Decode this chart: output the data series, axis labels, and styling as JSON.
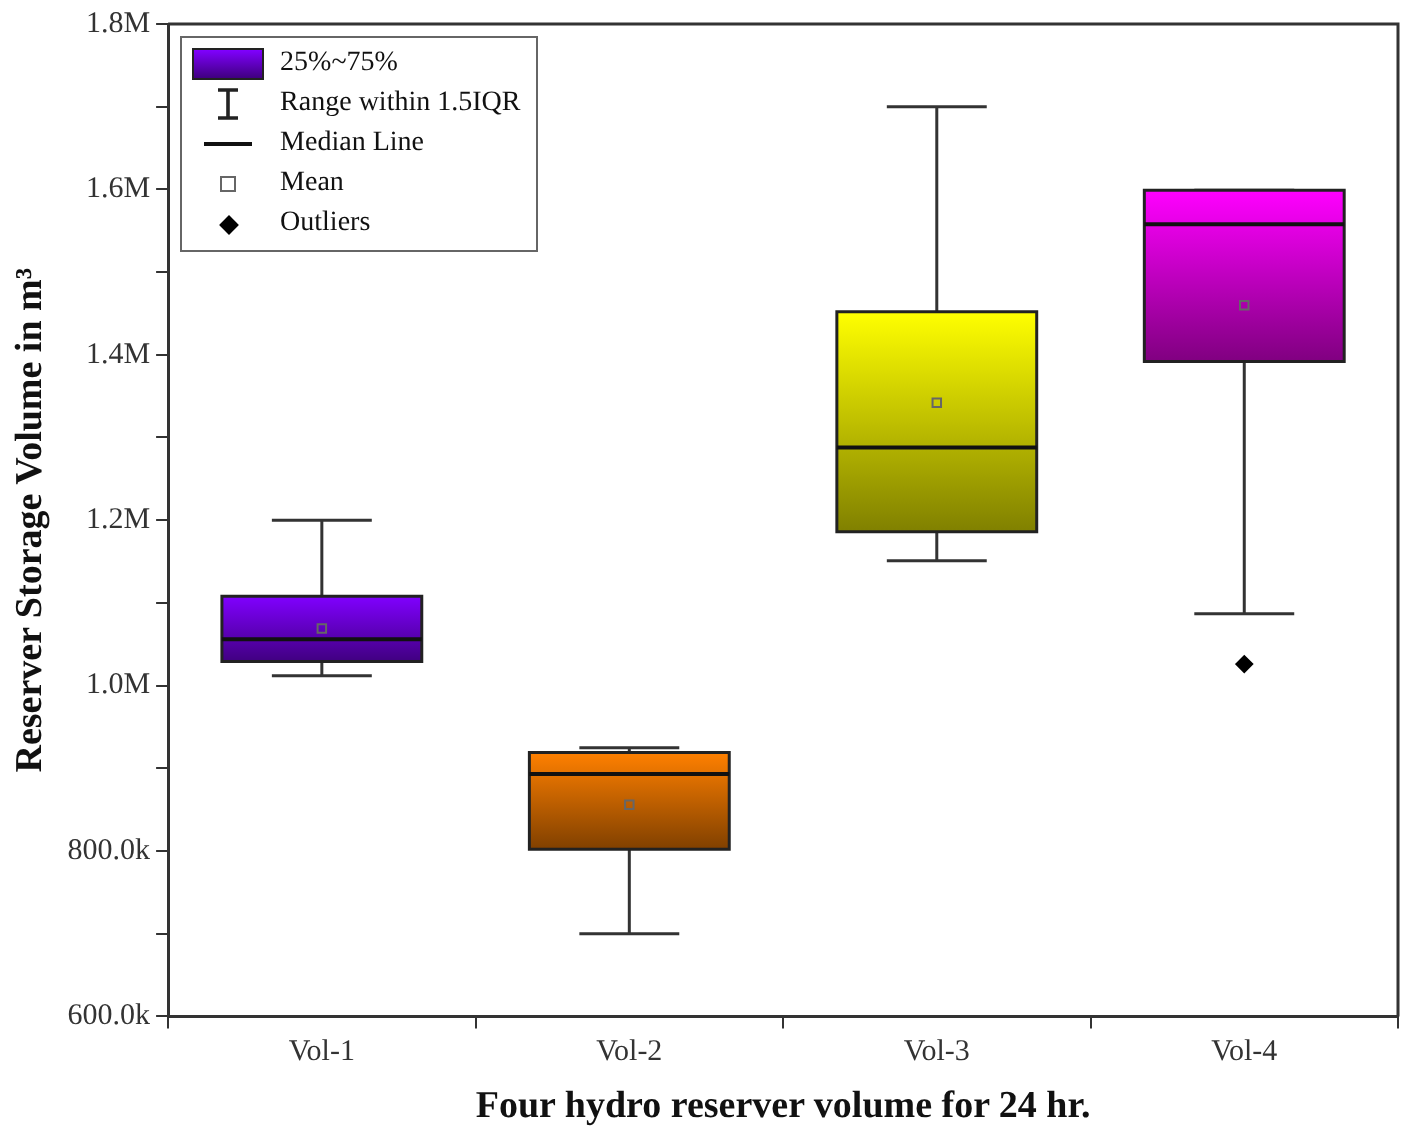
{
  "chart_data": {
    "type": "box",
    "xlabel": "Four hydro reserver volume for 24 hr.",
    "ylabel": "Reserver Storage Volume in m³",
    "categories": [
      "Vol-1",
      "Vol-2",
      "Vol-3",
      "Vol-4"
    ],
    "colors": [
      "#8000ff",
      "#ff8000",
      "#ffff00",
      "#ff00ff"
    ],
    "boxes": [
      {
        "low": 1012000,
        "q1": 1029000,
        "median": 1056000,
        "q3": 1108000,
        "high": 1200000,
        "mean": 1069000
      },
      {
        "low": 700000,
        "q1": 802000,
        "median": 893000,
        "q3": 919000,
        "high": 925000,
        "mean": 856000
      },
      {
        "low": 1151000,
        "q1": 1186000,
        "median": 1288000,
        "q3": 1452000,
        "high": 1700000,
        "mean": 1342000
      },
      {
        "low": 1087000,
        "q1": 1392000,
        "median": 1558000,
        "q3": 1599000,
        "high": 1599000,
        "mean": 1460000,
        "outliers": [
          1026000
        ]
      }
    ],
    "ylim": [
      600000,
      1800000
    ],
    "yticks": [
      {
        "value": 600000,
        "label": "600.0k"
      },
      {
        "value": 700000,
        "label": null
      },
      {
        "value": 800000,
        "label": "800.0k"
      },
      {
        "value": 900000,
        "label": null
      },
      {
        "value": 1000000,
        "label": "1.0M"
      },
      {
        "value": 1100000,
        "label": null
      },
      {
        "value": 1200000,
        "label": "1.2M"
      },
      {
        "value": 1300000,
        "label": null
      },
      {
        "value": 1400000,
        "label": "1.4M"
      },
      {
        "value": 1500000,
        "label": null
      },
      {
        "value": 1600000,
        "label": "1.6M"
      },
      {
        "value": 1700000,
        "label": null
      },
      {
        "value": 1800000,
        "label": "1.8M"
      }
    ],
    "annotations": [
      "25%~75%",
      "Range within 1.5IQR",
      "Median Line",
      "Mean",
      "Outliers"
    ]
  }
}
